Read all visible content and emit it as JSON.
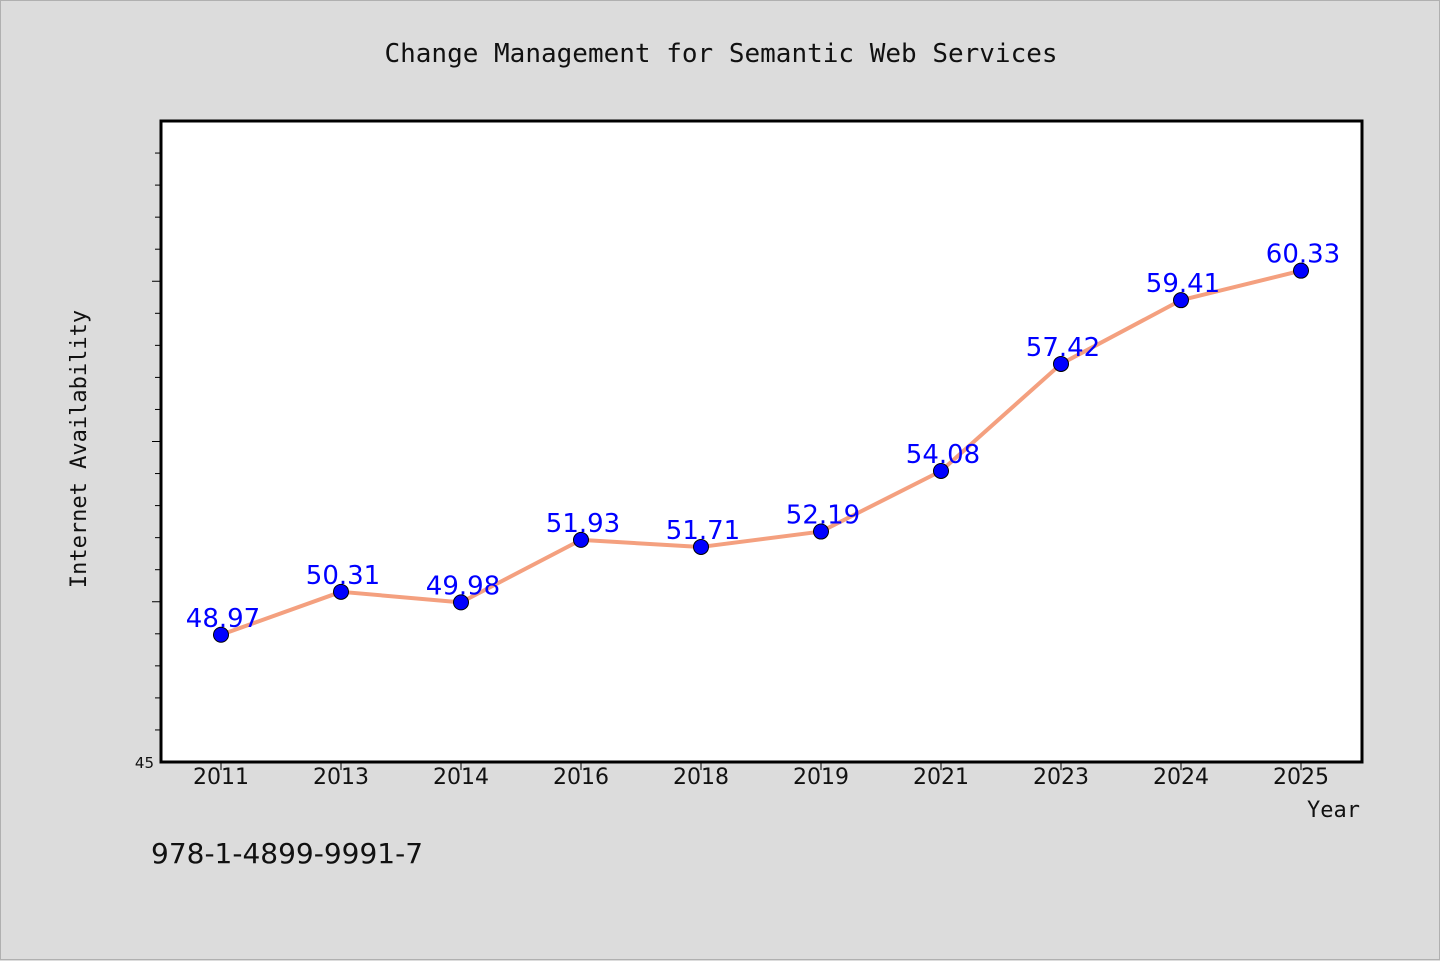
{
  "chart_data": {
    "type": "line",
    "title": "Change Management for Semantic Web Services",
    "xlabel": "Year",
    "ylabel": "Internet Availability",
    "categories": [
      "2011",
      "2013",
      "2014",
      "2016",
      "2018",
      "2019",
      "2021",
      "2023",
      "2024",
      "2025"
    ],
    "series": [
      {
        "values": [
          48.97,
          50.31,
          49.98,
          51.93,
          51.71,
          52.19,
          54.08,
          57.42,
          59.41,
          60.33
        ],
        "labels": [
          "48.97",
          "50.31",
          "49.98",
          "51.93",
          "51.71",
          "52.19",
          "54.08",
          "57.42",
          "59.41",
          "60.33"
        ]
      }
    ],
    "ylim": [
      45,
      65
    ],
    "y_tick_label": "45",
    "grid": false,
    "line_color": "#f4a07f",
    "marker_color": "#0000ff",
    "label_color": "#0000ff"
  },
  "footer": {
    "isbn": "978-1-4899-9991-7"
  }
}
